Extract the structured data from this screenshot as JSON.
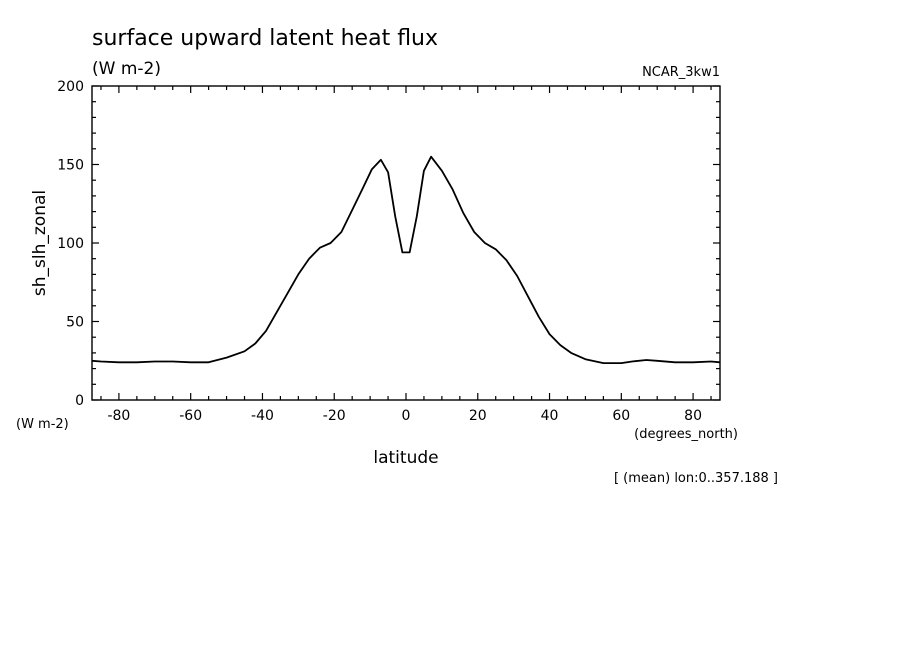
{
  "chart_data": {
    "type": "line",
    "title": "surface upward latent heat flux",
    "subtitle": "(W m-2)",
    "dataset_label": "NCAR_3kw1",
    "xlabel": "latitude",
    "ylabel": "sh_slh_zonal",
    "x_units": "(degrees_north)",
    "y_units": "(W m-2)",
    "footnote": "[ (mean) lon:0..357.188 ]",
    "xlim": [
      -87.5,
      87.5
    ],
    "ylim": [
      0,
      200
    ],
    "x_ticks": [
      -80,
      -60,
      -40,
      -20,
      0,
      20,
      40,
      60,
      80
    ],
    "y_ticks": [
      0,
      50,
      100,
      150,
      200
    ],
    "x_tick_labels": [
      "-80",
      "-60",
      "-40",
      "-20",
      "0",
      "20",
      "40",
      "60",
      "80"
    ],
    "y_tick_labels": [
      "0",
      "50",
      "100",
      "150",
      "200"
    ],
    "grid": false,
    "line_color": "#000000",
    "series": [
      {
        "x": [
          -87.5,
          -85,
          -80,
          -75,
          -70,
          -65,
          -60,
          -55,
          -50,
          -45,
          -42,
          -39,
          -36,
          -33,
          -30,
          -27,
          -24,
          -21,
          -18,
          -15,
          -12,
          -9.5,
          -7,
          -5,
          -3,
          -1,
          1,
          3,
          5,
          7,
          10,
          13,
          16,
          19,
          22,
          25,
          28,
          31,
          34,
          37,
          40,
          43,
          46,
          50,
          55,
          60,
          63,
          67,
          70,
          75,
          80,
          85,
          87.5
        ],
        "y": [
          25,
          24.5,
          24,
          24,
          24.5,
          24.5,
          24,
          24,
          27,
          31,
          36,
          44,
          56,
          68,
          80,
          90,
          97,
          100,
          107,
          121,
          135,
          147,
          153,
          145,
          117,
          94,
          94,
          117,
          146,
          155,
          146,
          134,
          119,
          107,
          100,
          96,
          89,
          79,
          66,
          53,
          42,
          35,
          30,
          26,
          23.5,
          23.5,
          24.5,
          25.5,
          25,
          24,
          24,
          24.5,
          24
        ]
      }
    ]
  }
}
